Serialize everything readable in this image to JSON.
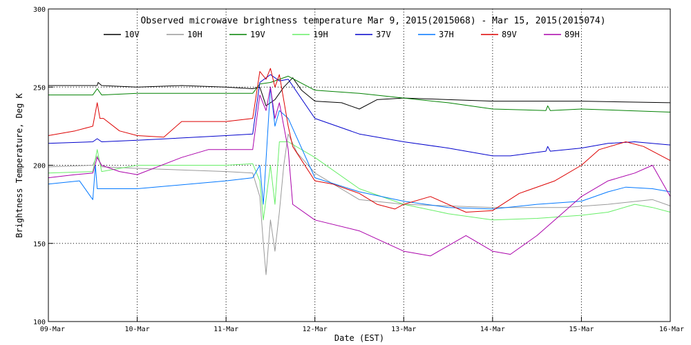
{
  "chart_data": {
    "type": "line",
    "title": "Observed microwave brightness temperature Mar  9, 2015(2015068) - Mar 15, 2015(2015074)",
    "xlabel": "Date (EST)",
    "ylabel": "Brightness Temperature, Deg K",
    "xlim": [
      0,
      7
    ],
    "ylim": [
      100,
      300
    ],
    "x_ticks": [
      {
        "value": 0,
        "label": "09-Mar"
      },
      {
        "value": 1,
        "label": "10-Mar"
      },
      {
        "value": 2,
        "label": "11-Mar"
      },
      {
        "value": 3,
        "label": "12-Mar"
      },
      {
        "value": 4,
        "label": "13-Mar"
      },
      {
        "value": 5,
        "label": "14-Mar"
      },
      {
        "value": 6,
        "label": "15-Mar"
      },
      {
        "value": 7,
        "label": "16-Mar"
      }
    ],
    "y_ticks": [
      {
        "value": 100,
        "label": "100"
      },
      {
        "value": 150,
        "label": "150"
      },
      {
        "value": 200,
        "label": "200"
      },
      {
        "value": 250,
        "label": "250"
      },
      {
        "value": 300,
        "label": "300"
      }
    ],
    "grid": true,
    "legend_position": "top",
    "series": [
      {
        "name": "10V",
        "color": "#000000",
        "x": [
          0,
          0.3,
          0.55,
          0.56,
          0.6,
          1.0,
          1.5,
          2.0,
          2.3,
          2.38,
          2.45,
          2.55,
          2.65,
          2.75,
          2.85,
          3.0,
          3.3,
          3.5,
          3.7,
          4.0,
          5.0,
          6.0,
          7.0
        ],
        "y": [
          251,
          251,
          251,
          253,
          251,
          250,
          251,
          250,
          249,
          250,
          238,
          242,
          250,
          256,
          248,
          241,
          240,
          236,
          242,
          243,
          241,
          241,
          240
        ]
      },
      {
        "name": "10H",
        "color": "#999999",
        "x": [
          0,
          0.5,
          0.55,
          0.6,
          1.0,
          2.0,
          2.3,
          2.38,
          2.42,
          2.45,
          2.5,
          2.55,
          2.6,
          2.65,
          2.7,
          2.8,
          3.0,
          3.5,
          4.0,
          5.0,
          5.8,
          6.3,
          6.8,
          7.0
        ],
        "y": [
          199,
          200,
          206,
          199,
          198,
          196,
          195,
          180,
          150,
          130,
          165,
          145,
          170,
          200,
          220,
          208,
          195,
          178,
          175,
          173,
          173,
          175,
          178,
          174
        ]
      },
      {
        "name": "19V",
        "color": "#008000",
        "x": [
          0,
          0.5,
          0.55,
          0.6,
          1.0,
          2.0,
          2.3,
          2.38,
          2.5,
          2.7,
          3.0,
          3.5,
          4.0,
          4.5,
          5.0,
          5.6,
          5.62,
          5.65,
          6.0,
          6.5,
          7.0
        ],
        "y": [
          245,
          245,
          249,
          245,
          246,
          246,
          246,
          252,
          253,
          257,
          248,
          246,
          243,
          240,
          236,
          235,
          238,
          235,
          236,
          235,
          234
        ]
      },
      {
        "name": "19H",
        "color": "#66ee66",
        "x": [
          0,
          0.5,
          0.55,
          0.6,
          1.0,
          2.0,
          2.3,
          2.38,
          2.42,
          2.5,
          2.55,
          2.6,
          2.7,
          3.0,
          3.5,
          4.0,
          4.5,
          5.0,
          5.5,
          6.0,
          6.3,
          6.6,
          6.8,
          7.0
        ],
        "y": [
          195,
          196,
          210,
          196,
          200,
          200,
          201,
          190,
          165,
          200,
          175,
          215,
          215,
          205,
          185,
          175,
          169,
          165,
          166,
          168,
          170,
          175,
          173,
          170
        ]
      },
      {
        "name": "37V",
        "color": "#0000cc",
        "x": [
          0,
          0.5,
          0.55,
          0.6,
          1.0,
          2.0,
          2.3,
          2.38,
          2.5,
          2.6,
          2.7,
          3.0,
          3.5,
          4.0,
          4.5,
          5.0,
          5.2,
          5.6,
          5.62,
          5.65,
          6.0,
          6.3,
          6.6,
          7.0
        ],
        "y": [
          214,
          215,
          217,
          215,
          216,
          219,
          220,
          253,
          258,
          254,
          255,
          230,
          220,
          215,
          211,
          206,
          206,
          209,
          212,
          209,
          211,
          214,
          215,
          213
        ]
      },
      {
        "name": "37H",
        "color": "#0077ff",
        "x": [
          0,
          0.35,
          0.5,
          0.53,
          0.55,
          0.6,
          1.0,
          2.0,
          2.3,
          2.38,
          2.42,
          2.5,
          2.55,
          2.6,
          2.7,
          3.0,
          3.5,
          4.0,
          4.5,
          5.0,
          5.5,
          6.0,
          6.3,
          6.5,
          6.8,
          7.0
        ],
        "y": [
          188,
          190,
          178,
          200,
          185,
          185,
          185,
          190,
          192,
          200,
          175,
          250,
          225,
          235,
          230,
          192,
          183,
          177,
          173,
          172,
          175,
          177,
          183,
          186,
          185,
          183
        ]
      },
      {
        "name": "89V",
        "color": "#dd0000",
        "x": [
          0,
          0.3,
          0.5,
          0.55,
          0.58,
          0.62,
          0.8,
          1.0,
          1.3,
          1.5,
          2.0,
          2.3,
          2.38,
          2.45,
          2.5,
          2.55,
          2.6,
          2.7,
          2.75,
          3.0,
          3.2,
          3.5,
          3.7,
          3.9,
          4.0,
          4.3,
          4.7,
          5.0,
          5.3,
          5.7,
          6.0,
          6.2,
          6.5,
          6.7,
          7.0
        ],
        "y": [
          219,
          222,
          225,
          240,
          230,
          230,
          222,
          219,
          218,
          228,
          228,
          230,
          260,
          255,
          262,
          250,
          258,
          225,
          212,
          190,
          188,
          182,
          175,
          172,
          175,
          180,
          170,
          171,
          182,
          190,
          200,
          210,
          215,
          212,
          203
        ]
      },
      {
        "name": "89H",
        "color": "#aa00aa",
        "x": [
          0,
          0.3,
          0.5,
          0.55,
          0.6,
          0.8,
          1.0,
          1.5,
          1.8,
          2.0,
          2.3,
          2.38,
          2.45,
          2.5,
          2.55,
          2.6,
          2.7,
          2.75,
          3.0,
          3.5,
          4.0,
          4.3,
          4.7,
          5.0,
          5.2,
          5.5,
          5.8,
          6.0,
          6.3,
          6.6,
          6.8,
          7.0
        ],
        "y": [
          192,
          194,
          195,
          205,
          200,
          196,
          194,
          205,
          210,
          210,
          210,
          245,
          235,
          250,
          230,
          240,
          210,
          175,
          165,
          158,
          145,
          142,
          155,
          145,
          143,
          155,
          170,
          180,
          190,
          195,
          200,
          180
        ]
      }
    ]
  }
}
